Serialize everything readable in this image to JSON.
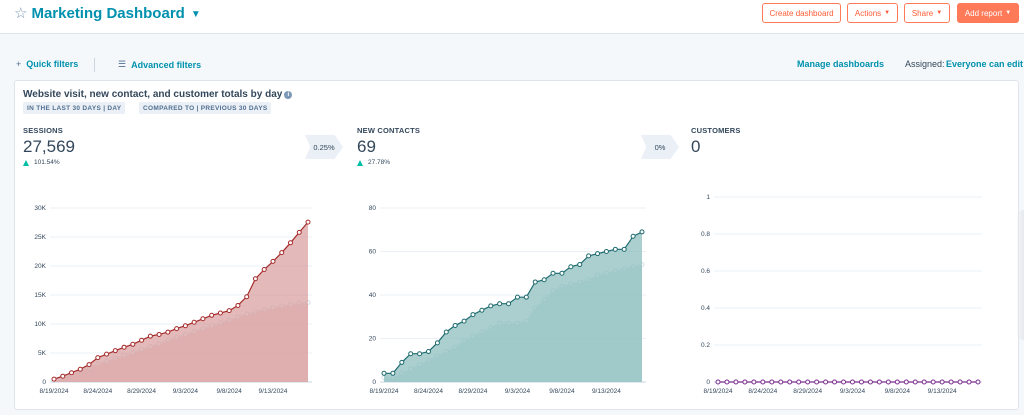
{
  "header": {
    "title": "Marketing Dashboard",
    "create_label": "Create dashboard",
    "actions_label": "Actions",
    "share_label": "Share",
    "add_report_label": "Add report"
  },
  "filters": {
    "quick_label": "Quick filters",
    "advanced_label": "Advanced filters",
    "manage_label": "Manage dashboards",
    "assigned_label": "Assigned:",
    "assigned_value": "Everyone can edit"
  },
  "report": {
    "title": "Website visit, new contact, and customer totals by day",
    "range_tag": "IN THE LAST 30 DAYS | DAY",
    "compare_tag": "COMPARED TO | PREVIOUS 30 DAYS",
    "metrics": [
      {
        "label": "SESSIONS",
        "value": "27,569",
        "delta": "101.54%"
      },
      {
        "label": "NEW CONTACTS",
        "value": "69",
        "delta": "27.78%"
      },
      {
        "label": "CUSTOMERS",
        "value": "0",
        "delta": ""
      }
    ],
    "conversions": [
      "0.25%",
      "0%"
    ]
  },
  "colors": {
    "brand": "#0091ae",
    "accent": "#ff7a59",
    "sessions": "#a52a2a",
    "contacts": "#1e6b70",
    "customers": "#7b2d8e",
    "up": "#00bda5"
  },
  "chart_data": [
    {
      "type": "area",
      "title": "SESSIONS",
      "x_ticks": [
        "8/19/2024",
        "8/24/2024",
        "8/29/2024",
        "9/3/2024",
        "9/8/2024",
        "9/13/2024"
      ],
      "y_ticks": [
        "0",
        "5K",
        "10K",
        "15K",
        "20K",
        "25K",
        "30K"
      ],
      "ylim": [
        0,
        30000
      ],
      "series": [
        {
          "values": [
            500,
            1000,
            1600,
            2200,
            3000,
            4200,
            4800,
            5400,
            6000,
            6500,
            7200,
            7900,
            8200,
            8600,
            9200,
            9700,
            10300,
            10900,
            11500,
            11900,
            12300,
            13200,
            14700,
            17800,
            19400,
            20800,
            22300,
            24000,
            25800,
            27569
          ]
        },
        {
          "values": [
            250,
            700,
            1300,
            1900,
            2500,
            3100,
            3600,
            4100,
            4600,
            5100,
            5600,
            6100,
            6600,
            7200,
            7700,
            8200,
            8700,
            9200,
            9700,
            10200,
            10700,
            11200,
            11700,
            12100,
            12500,
            12800,
            13100,
            13400,
            13600,
            13700
          ]
        }
      ]
    },
    {
      "type": "area",
      "title": "NEW CONTACTS",
      "x_ticks": [
        "8/19/2024",
        "8/24/2024",
        "8/29/2024",
        "9/3/2024",
        "9/8/2024",
        "9/13/2024"
      ],
      "y_ticks": [
        "0",
        "20",
        "40",
        "60",
        "80"
      ],
      "ylim": [
        0,
        80
      ],
      "series": [
        {
          "values": [
            4,
            4,
            9,
            13,
            13,
            14,
            18,
            23,
            26,
            28,
            31,
            33,
            35,
            36,
            36,
            39,
            39,
            46,
            47,
            50,
            50,
            53,
            54,
            58,
            59,
            60,
            61,
            61,
            67,
            69
          ]
        },
        {
          "values": [
            2,
            2,
            4,
            6,
            8,
            10,
            12,
            14,
            16,
            19,
            21,
            23,
            25,
            27,
            27,
            27,
            28,
            34,
            38,
            42,
            44,
            45,
            46,
            47,
            49,
            50,
            51,
            52,
            53,
            54
          ]
        }
      ]
    },
    {
      "type": "line",
      "title": "CUSTOMERS",
      "x_ticks": [
        "8/19/2024",
        "8/24/2024",
        "8/29/2024",
        "9/3/2024",
        "9/8/2024",
        "9/13/2024"
      ],
      "y_ticks": [
        "0",
        "0.2",
        "0.4",
        "0.6",
        "0.8",
        "1"
      ],
      "ylim": [
        0,
        1
      ],
      "series": [
        {
          "values": [
            0,
            0,
            0,
            0,
            0,
            0,
            0,
            0,
            0,
            0,
            0,
            0,
            0,
            0,
            0,
            0,
            0,
            0,
            0,
            0,
            0,
            0,
            0,
            0,
            0,
            0,
            0,
            0,
            0,
            0
          ]
        }
      ]
    }
  ]
}
